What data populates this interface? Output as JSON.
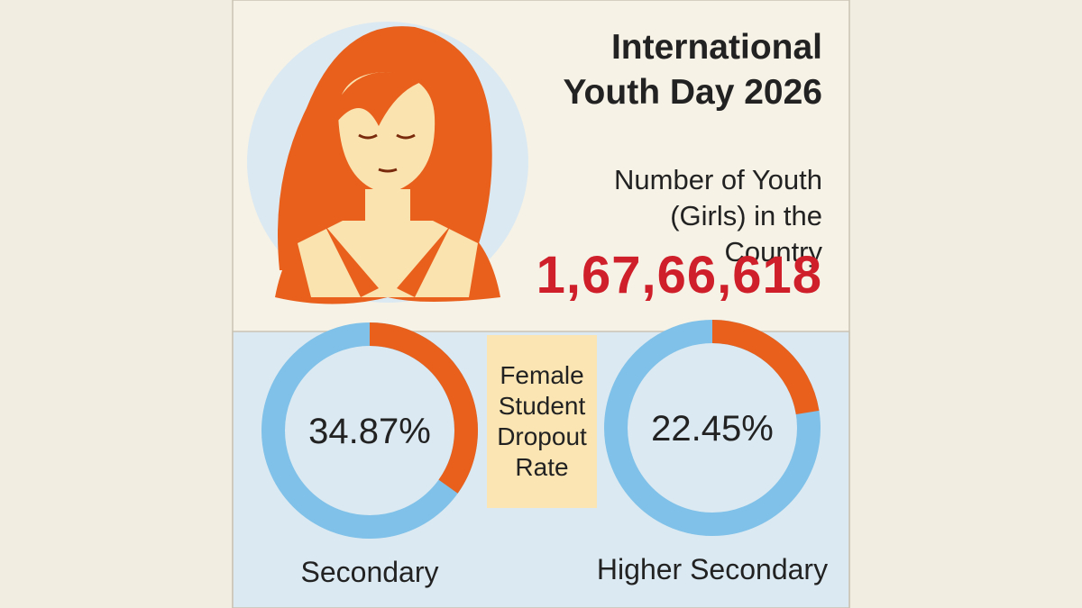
{
  "header": {
    "title": "International Youth Day 2026",
    "subtitle": "Number of Youth (Girls) in the Country",
    "figure": "1,67,66,618"
  },
  "center_label": "Female Student Dropout Rate",
  "chart_data": [
    {
      "type": "donut",
      "label": "Secondary",
      "values": [
        34.87
      ],
      "value_labels": [
        "34.87%"
      ],
      "ylim": [
        0,
        100
      ],
      "color": "#e8601c",
      "track_color": "#7fc1e8"
    },
    {
      "type": "donut",
      "label": "Higher Secondary",
      "values": [
        22.45
      ],
      "value_labels": [
        "22.45%"
      ],
      "ylim": [
        0,
        100
      ],
      "color": "#e8601c",
      "track_color": "#7fc1e8"
    }
  ]
}
